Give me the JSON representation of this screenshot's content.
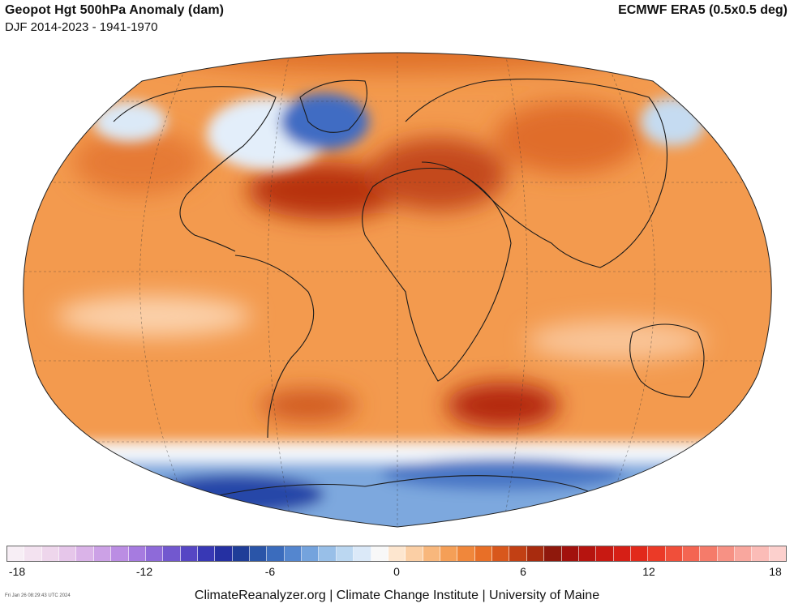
{
  "header": {
    "title": "Geopot Hgt 500hPa Anomaly (dam)",
    "period": "DJF 2014-2023 - 1941-1970",
    "dataset": "ECMWF ERA5 (0.5x0.5 deg)"
  },
  "map": {
    "projection": "robinson",
    "land_color": "none",
    "background_color": "#f39a4e"
  },
  "colorbar": {
    "unit": "dam",
    "ticks": [
      "-18",
      "-12",
      "-6",
      "0",
      "6",
      "12",
      "18"
    ],
    "colors": [
      "#f7eef5",
      "#f3e2f0",
      "#eed6ec",
      "#e6c6ea",
      "#dab3e8",
      "#cca1e6",
      "#bb8de3",
      "#a67be0",
      "#8e6ad9",
      "#7258cf",
      "#5646c4",
      "#3838b5",
      "#2530a2",
      "#1f3d98",
      "#2a55a8",
      "#3b6cbd",
      "#5486cf",
      "#74a3dd",
      "#98bfe8",
      "#bbd7f1",
      "#dbe9f8",
      "#f8f8f8",
      "#fde6cf",
      "#fbcfa5",
      "#f8b77c",
      "#f59f57",
      "#f0873b",
      "#e86f27",
      "#d8571c",
      "#c24014",
      "#a82b0e",
      "#8f180c",
      "#a2110d",
      "#b6140f",
      "#c81912",
      "#d61f16",
      "#e2291b",
      "#eb3a27",
      "#f04f3a",
      "#f46552",
      "#f57b6a",
      "#f79184",
      "#f9a79e",
      "#fbbcb7",
      "#fcd0cd"
    ]
  },
  "footer": {
    "timestamp": "Fri Jan 26 08:29:43 UTC 2024",
    "credit": "ClimateReanalyzer.org | Climate Change Institute | University of Maine"
  }
}
